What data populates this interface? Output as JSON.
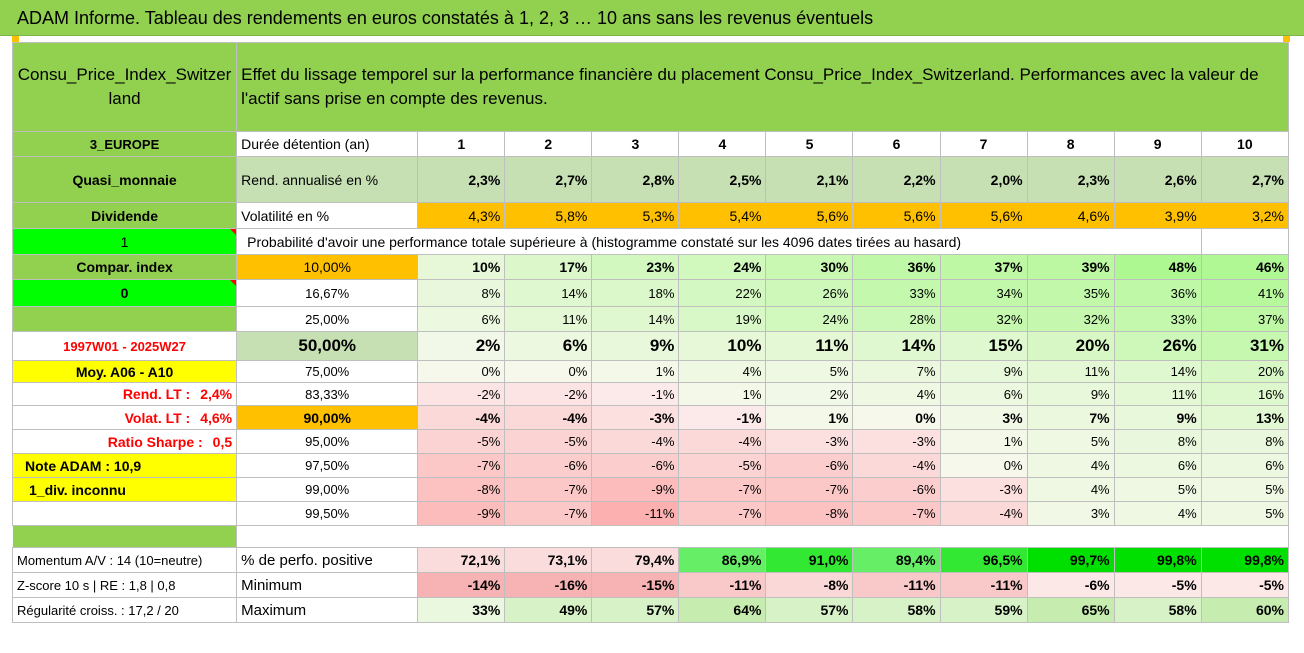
{
  "title": "ADAM Informe. Tableau des rendements en euros constatés à 1, 2, 3 … 10 ans sans les revenus éventuels",
  "asset_name": "Consu_Price_Index_Switzerland",
  "description": "Effet du lissage temporel sur la performance financière du placement Consu_Price_Index_Switzerland. Performances avec la valeur de l'actif sans prise en compte des revenus.",
  "side": {
    "region": "3_EUROPE",
    "category": "Quasi_monnaie",
    "dividend_label": "Dividende",
    "dividend_value": "1",
    "compar_label": "Compar. index",
    "compar_value": "0",
    "period": "1997W01 - 2025W27",
    "moy": "Moy. A06 - A10",
    "rend_lt_label": "Rend. LT :",
    "rend_lt_value": "2,4%",
    "volat_lt_label": "Volat. LT :",
    "volat_lt_value": "4,6%",
    "sharpe_label": "Ratio Sharpe :",
    "sharpe_value": "0,5",
    "note": "Note ADAM : 10,9",
    "div": "1_div. inconnu"
  },
  "years_label": "Durée détention (an)",
  "years": [
    "1",
    "2",
    "3",
    "4",
    "5",
    "6",
    "7",
    "8",
    "9",
    "10"
  ],
  "rend_label": "Rend. annualisé en %",
  "rend": [
    "2,3%",
    "2,7%",
    "2,8%",
    "2,5%",
    "2,1%",
    "2,2%",
    "2,0%",
    "2,3%",
    "2,6%",
    "2,7%"
  ],
  "vol_label": "Volatilité en %",
  "vol": [
    "4,3%",
    "5,8%",
    "5,3%",
    "5,4%",
    "5,6%",
    "5,6%",
    "5,6%",
    "4,6%",
    "3,9%",
    "3,2%"
  ],
  "prob_label": "Probabilité d'avoir une performance totale supérieure à (histogramme constaté sur les 4096 dates tirées au hasard)",
  "prob_rows": [
    {
      "threshold": "10,00%",
      "values": [
        "10%",
        "17%",
        "23%",
        "24%",
        "30%",
        "36%",
        "37%",
        "39%",
        "48%",
        "46%"
      ]
    },
    {
      "threshold": "16,67%",
      "values": [
        "8%",
        "14%",
        "18%",
        "22%",
        "26%",
        "33%",
        "34%",
        "35%",
        "36%",
        "41%"
      ]
    },
    {
      "threshold": "25,00%",
      "values": [
        "6%",
        "11%",
        "14%",
        "19%",
        "24%",
        "28%",
        "32%",
        "32%",
        "33%",
        "37%"
      ]
    },
    {
      "threshold": "50,00%",
      "values": [
        "2%",
        "6%",
        "9%",
        "10%",
        "11%",
        "14%",
        "15%",
        "20%",
        "26%",
        "31%"
      ]
    },
    {
      "threshold": "75,00%",
      "values": [
        "0%",
        "0%",
        "1%",
        "4%",
        "5%",
        "7%",
        "9%",
        "11%",
        "14%",
        "20%"
      ]
    },
    {
      "threshold": "83,33%",
      "values": [
        "-2%",
        "-2%",
        "-1%",
        "1%",
        "2%",
        "4%",
        "6%",
        "9%",
        "11%",
        "16%"
      ]
    },
    {
      "threshold": "90,00%",
      "values": [
        "-4%",
        "-4%",
        "-3%",
        "-1%",
        "1%",
        "0%",
        "3%",
        "7%",
        "9%",
        "13%"
      ]
    },
    {
      "threshold": "95,00%",
      "values": [
        "-5%",
        "-5%",
        "-4%",
        "-4%",
        "-3%",
        "-3%",
        "1%",
        "5%",
        "8%",
        "8%"
      ]
    },
    {
      "threshold": "97,50%",
      "values": [
        "-7%",
        "-6%",
        "-6%",
        "-5%",
        "-6%",
        "-4%",
        "0%",
        "4%",
        "6%",
        "6%"
      ]
    },
    {
      "threshold": "99,00%",
      "values": [
        "-8%",
        "-7%",
        "-9%",
        "-7%",
        "-7%",
        "-6%",
        "-3%",
        "4%",
        "5%",
        "5%"
      ]
    },
    {
      "threshold": "99,50%",
      "values": [
        "-9%",
        "-7%",
        "-11%",
        "-7%",
        "-8%",
        "-7%",
        "-4%",
        "3%",
        "4%",
        "5%"
      ]
    }
  ],
  "footer": {
    "momentum": "Momentum A/V : 14 (10=neutre)",
    "zscore": "Z-score 10 s | RE : 1,8 | 0,8",
    "regul": "Régularité croiss. : 17,2 / 20",
    "pos_label": "% de perfo. positive",
    "pos": [
      "72,1%",
      "73,1%",
      "79,4%",
      "86,9%",
      "91,0%",
      "89,4%",
      "96,5%",
      "99,7%",
      "99,8%",
      "99,8%"
    ],
    "min_label": "Minimum",
    "min": [
      "-14%",
      "-16%",
      "-15%",
      "-11%",
      "-8%",
      "-11%",
      "-11%",
      "-6%",
      "-5%",
      "-5%"
    ],
    "max_label": "Maximum",
    "max": [
      "33%",
      "49%",
      "57%",
      "64%",
      "57%",
      "58%",
      "59%",
      "65%",
      "58%",
      "60%"
    ]
  }
}
